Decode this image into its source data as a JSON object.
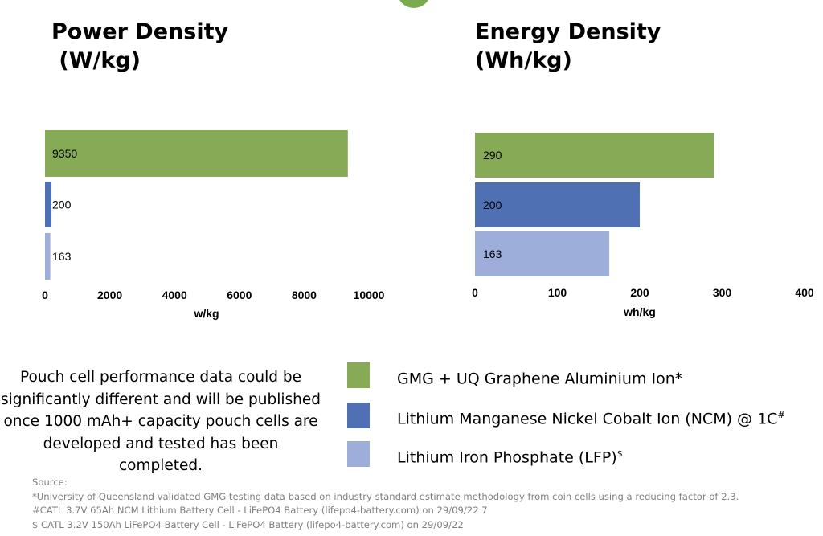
{
  "colors": {
    "green": "#86aa55",
    "blue": "#4f71b3",
    "lightblue": "#9eaedb",
    "deco": "#7aab4f"
  },
  "chart_data": [
    {
      "type": "bar",
      "orientation": "horizontal",
      "title": "Power Density\n (W/kg)",
      "xlabel": "w/kg",
      "categories": [
        "GMG + UQ Graphene Aluminium Ion*",
        "Lithium Manganese Nickel Cobalt Ion (NCM) @ 1C#",
        "Lithium Iron Phosphate (LFP)$"
      ],
      "values": [
        9350,
        200,
        163
      ],
      "data_labels": [
        "9350",
        "200",
        "163"
      ],
      "xlim": [
        0,
        10000
      ],
      "xticks": [
        "0",
        "2000",
        "4000",
        "6000",
        "8000",
        "10000"
      ],
      "tick_values": [
        0,
        2000,
        4000,
        6000,
        8000,
        10000
      ],
      "grid": false
    },
    {
      "type": "bar",
      "orientation": "horizontal",
      "title": "Energy Density\n(Wh/kg)",
      "xlabel": "wh/kg",
      "categories": [
        "GMG + UQ Graphene Aluminium Ion*",
        "Lithium Manganese Nickel Cobalt Ion (NCM) @ 1C#",
        "Lithium Iron Phosphate (LFP)$"
      ],
      "values": [
        290,
        200,
        163
      ],
      "data_labels": [
        "290",
        "200",
        "163"
      ],
      "xlim": [
        0,
        400
      ],
      "xticks": [
        "0",
        "100",
        "200",
        "300",
        "400"
      ],
      "tick_values": [
        0,
        100,
        200,
        300,
        400
      ],
      "grid": false
    }
  ],
  "note": {
    "text": "Pouch cell performance data could be significantly different and will be published once 1000 mAh+ capacity pouch cells are developed and tested has been completed."
  },
  "legend": {
    "items": [
      {
        "label": "GMG + UQ Graphene Aluminium Ion*",
        "sup": ""
      },
      {
        "label": "Lithium Manganese Nickel Cobalt Ion (NCM) @ 1C",
        "sup": "#"
      },
      {
        "label": "Lithium Iron Phosphate (LFP)",
        "sup": "$"
      }
    ]
  },
  "source": {
    "heading": "Source:",
    "lines": [
      "*University of Queensland validated GMG testing data based on industry standard estimate methodology from coin cells using a reducing factor of 2.3.",
      "#CATL 3.7V 65Ah NCM Lithium Battery Cell - LiFePO4 Battery (lifepo4-battery.com) on 29/09/22 7",
      "$ CATL 3.2V 150Ah LiFePO4 Battery Cell - LiFePO4 Battery (lifepo4-battery.com) on 29/09/22"
    ]
  }
}
